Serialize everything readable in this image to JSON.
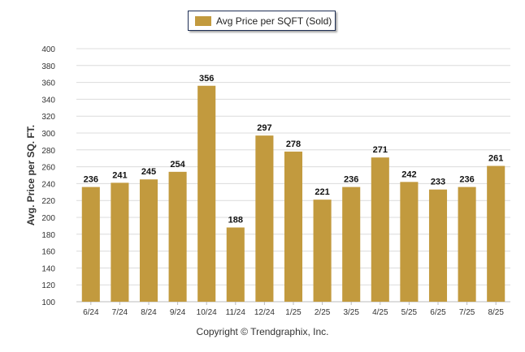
{
  "colors": {
    "bar": "#c29a3e",
    "grid": "#dcdcdc",
    "text": "#333333"
  },
  "legend": {
    "label": "Avg Price per SQFT (Sold)"
  },
  "footer": {
    "copyright": "Copyright © Trendgraphix, Inc."
  },
  "chart_data": {
    "type": "bar",
    "title": "",
    "xlabel": "",
    "ylabel": "Avg. Price per SQ. FT.",
    "ylim": [
      100,
      400
    ],
    "yticks": [
      100,
      120,
      140,
      160,
      180,
      200,
      220,
      240,
      260,
      280,
      300,
      320,
      340,
      360,
      380,
      400
    ],
    "grid": true,
    "legend_position": "top-center",
    "categories": [
      "6/24",
      "7/24",
      "8/24",
      "9/24",
      "10/24",
      "11/24",
      "12/24",
      "1/25",
      "2/25",
      "3/25",
      "4/25",
      "5/25",
      "6/25",
      "7/25",
      "8/25"
    ],
    "series": [
      {
        "name": "Avg Price per SQFT (Sold)",
        "values": [
          236,
          241,
          245,
          254,
          356,
          188,
          297,
          278,
          221,
          236,
          271,
          242,
          233,
          236,
          261
        ]
      }
    ]
  }
}
